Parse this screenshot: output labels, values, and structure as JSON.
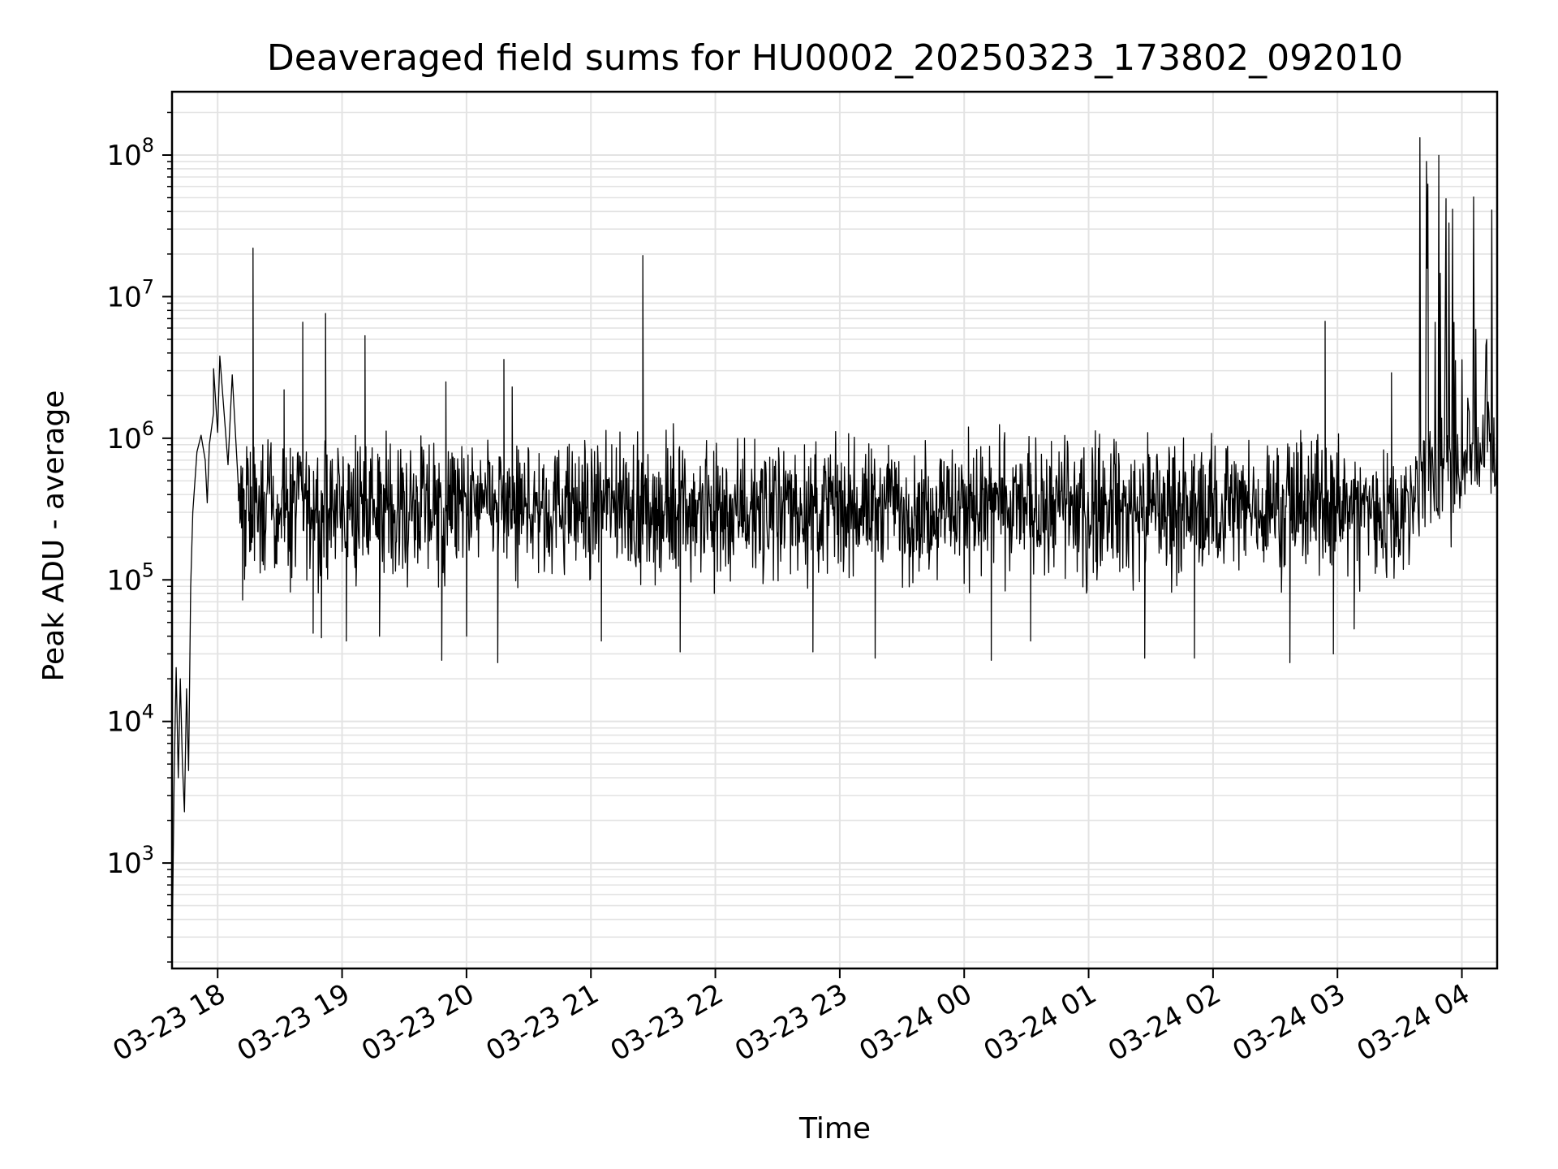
{
  "chart_data": {
    "type": "line",
    "title": "Deaveraged field sums for HU0002_20250323_173802_092010",
    "xlabel": "Time",
    "ylabel": "Peak ADU - average",
    "yscale": "log",
    "ylim": [
      180,
      280000000
    ],
    "xlim": [
      "2025-03-23 17:38",
      "2025-03-24 04:17"
    ],
    "grid": true,
    "line_color": "#000000",
    "grid_color": "#e3e3e3",
    "x_ticks": [
      {
        "t": "2025-03-23 18:00",
        "label": "03-23 18"
      },
      {
        "t": "2025-03-23 19:00",
        "label": "03-23 19"
      },
      {
        "t": "2025-03-23 20:00",
        "label": "03-23 20"
      },
      {
        "t": "2025-03-23 21:00",
        "label": "03-23 21"
      },
      {
        "t": "2025-03-23 22:00",
        "label": "03-23 22"
      },
      {
        "t": "2025-03-23 23:00",
        "label": "03-23 23"
      },
      {
        "t": "2025-03-24 00:00",
        "label": "03-24 00"
      },
      {
        "t": "2025-03-24 01:00",
        "label": "03-24 01"
      },
      {
        "t": "2025-03-24 02:00",
        "label": "03-24 02"
      },
      {
        "t": "2025-03-24 03:00",
        "label": "03-24 03"
      },
      {
        "t": "2025-03-24 04:00",
        "label": "03-24 04"
      }
    ],
    "y_ticks": [
      {
        "value": 1000,
        "base": "10",
        "exp": "3"
      },
      {
        "value": 10000,
        "base": "10",
        "exp": "4"
      },
      {
        "value": 100000,
        "base": "10",
        "exp": "5"
      },
      {
        "value": 1000000,
        "base": "10",
        "exp": "6"
      },
      {
        "value": 10000000,
        "base": "10",
        "exp": "7"
      },
      {
        "value": 100000000,
        "base": "10",
        "exp": "8"
      }
    ],
    "series": [
      {
        "points": [
          [
            "2025-03-23 17:38",
            200
          ],
          [
            "2025-03-23 17:39",
            4000
          ],
          [
            "2025-03-23 17:40",
            24000
          ],
          [
            "2025-03-23 17:41",
            4000
          ],
          [
            "2025-03-23 17:42",
            20000
          ],
          [
            "2025-03-23 17:43",
            5000
          ],
          [
            "2025-03-23 17:44",
            2300
          ],
          [
            "2025-03-23 17:45",
            17000
          ],
          [
            "2025-03-23 17:46",
            4500
          ],
          [
            "2025-03-23 17:47",
            90000
          ],
          [
            "2025-03-23 17:48",
            300000
          ],
          [
            "2025-03-23 17:50",
            800000
          ],
          [
            "2025-03-23 17:52",
            1050000
          ],
          [
            "2025-03-23 17:54",
            700000
          ],
          [
            "2025-03-23 17:55",
            350000
          ],
          [
            "2025-03-23 17:56",
            900000
          ],
          [
            "2025-03-23 17:58",
            1500000
          ],
          [
            "2025-03-23 18:00",
            1100000
          ],
          [
            "2025-03-23 18:05",
            650000
          ],
          [
            "2025-03-23 18:10",
            450000
          ]
        ],
        "noise": {
          "start": "2025-03-23 18:10",
          "end": "2025-03-24 03:38",
          "step_min": 0.25,
          "base": 330000,
          "hi": 700000,
          "lo": 80000
        },
        "spikes": [
          [
            "2025-03-23 17:58",
            3100000
          ],
          [
            "2025-03-23 18:01",
            3800000
          ],
          [
            "2025-03-23 18:07",
            2800000
          ],
          [
            "2025-03-23 18:17",
            22000000
          ],
          [
            "2025-03-23 18:32",
            2200000
          ],
          [
            "2025-03-23 18:41",
            6600000
          ],
          [
            "2025-03-23 18:52",
            7600000
          ],
          [
            "2025-03-23 19:11",
            5300000
          ],
          [
            "2025-03-23 19:50",
            2500000
          ],
          [
            "2025-03-23 20:18",
            3600000
          ],
          [
            "2025-03-23 20:22",
            2300000
          ],
          [
            "2025-03-23 21:25",
            19500000
          ],
          [
            "2025-03-24 02:54",
            6700000
          ],
          [
            "2025-03-24 03:26",
            2900000
          ],
          [
            "2025-03-23 21:10",
            900000
          ],
          [
            "2025-03-23 22:14",
            1000000
          ],
          [
            "2025-03-24 00:02",
            1200000
          ],
          [
            "2025-03-24 00:42",
            950000
          ]
        ],
        "dips": [
          [
            "2025-03-23 18:12",
            72000
          ],
          [
            "2025-03-23 18:35",
            82000
          ],
          [
            "2025-03-23 18:46",
            42000
          ],
          [
            "2025-03-23 18:50",
            39000
          ],
          [
            "2025-03-23 19:02",
            37000
          ],
          [
            "2025-03-23 19:18",
            40000
          ],
          [
            "2025-03-23 19:48",
            27000
          ],
          [
            "2025-03-23 20:00",
            40000
          ],
          [
            "2025-03-23 20:15",
            26000
          ],
          [
            "2025-03-23 21:05",
            37000
          ],
          [
            "2025-03-23 21:43",
            31000
          ],
          [
            "2025-03-23 22:47",
            31000
          ],
          [
            "2025-03-23 23:17",
            28000
          ],
          [
            "2025-03-24 00:13",
            27000
          ],
          [
            "2025-03-24 00:32",
            37000
          ],
          [
            "2025-03-24 01:27",
            28000
          ],
          [
            "2025-03-24 01:51",
            28000
          ],
          [
            "2025-03-24 02:37",
            26000
          ],
          [
            "2025-03-24 02:58",
            30000
          ],
          [
            "2025-03-24 03:08",
            45000
          ]
        ],
        "end_burst": {
          "start": "2025-03-24 03:38",
          "end": "2025-03-24 04:17",
          "step_min": 0.35,
          "hi": 150000000,
          "lo": 130000,
          "base": 500000
        }
      }
    ]
  }
}
